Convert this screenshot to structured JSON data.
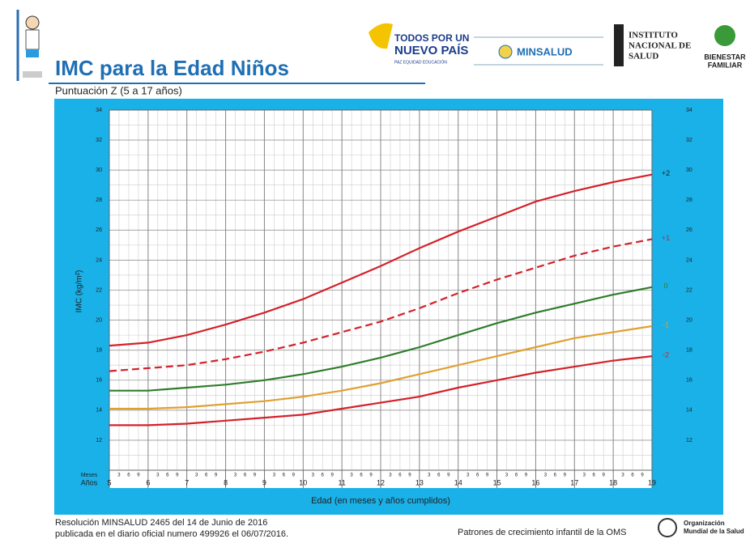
{
  "header": {
    "title": "IMC para la Edad Niños",
    "subtitle": "Puntuación Z (5 a 17 años)",
    "logo1_line1": "TODOS POR UN",
    "logo1_line2": "NUEVO PAÍS",
    "logo1_tagline": "PAZ  EQUIDAD  EDUCACIÓN",
    "logo2": "MINSALUD",
    "logo3": [
      "INSTITUTO",
      "NACIONAL DE",
      "SALUD"
    ],
    "logo4": [
      "BIENESTAR",
      "FAMILIAR"
    ]
  },
  "chart_data": {
    "type": "line",
    "y_label": "IMC (kg/m²)",
    "x_label": "Edad (en meses y años cumplidos)",
    "month_row_label": "Meses",
    "year_row_label": "Años",
    "month_ticks": [
      3,
      6,
      9
    ],
    "x": [
      5,
      6,
      7,
      8,
      9,
      10,
      11,
      12,
      13,
      14,
      15,
      16,
      17,
      18,
      19
    ],
    "xlim": [
      5,
      19
    ],
    "xticks": [
      5,
      6,
      7,
      8,
      9,
      10,
      11,
      12,
      13,
      14,
      15,
      16,
      17,
      18,
      19
    ],
    "ylim": [
      10,
      34
    ],
    "yticks": [
      12,
      14,
      16,
      18,
      20,
      22,
      24,
      26,
      28,
      30,
      32,
      34
    ],
    "grid": true,
    "series": [
      {
        "name": "+2",
        "color": "#d4212a",
        "dashed": false,
        "values": [
          18.3,
          18.5,
          19.0,
          19.7,
          20.5,
          21.4,
          22.5,
          23.6,
          24.8,
          25.9,
          26.9,
          27.9,
          28.6,
          29.2,
          29.7
        ]
      },
      {
        "name": "+1",
        "color": "#d4212a",
        "dashed": true,
        "values": [
          16.6,
          16.8,
          17.0,
          17.4,
          17.9,
          18.5,
          19.2,
          19.9,
          20.8,
          21.8,
          22.7,
          23.5,
          24.3,
          24.9,
          25.4
        ]
      },
      {
        "name": "0",
        "color": "#2e7d2a",
        "dashed": false,
        "values": [
          15.3,
          15.3,
          15.5,
          15.7,
          16.0,
          16.4,
          16.9,
          17.5,
          18.2,
          19.0,
          19.8,
          20.5,
          21.1,
          21.7,
          22.2
        ]
      },
      {
        "name": "-1",
        "color": "#e0a030",
        "dashed": false,
        "values": [
          14.1,
          14.1,
          14.2,
          14.4,
          14.6,
          14.9,
          15.3,
          15.8,
          16.4,
          17.0,
          17.6,
          18.2,
          18.8,
          19.2,
          19.6
        ]
      },
      {
        "name": "-2",
        "color": "#d4212a",
        "dashed": false,
        "values": [
          13.0,
          13.0,
          13.1,
          13.3,
          13.5,
          13.7,
          14.1,
          14.5,
          14.9,
          15.5,
          16.0,
          16.5,
          16.9,
          17.3,
          17.6
        ]
      }
    ]
  },
  "footer": {
    "line1": "Resolución MINSALUD 2465 del 14 de Junio de 2016",
    "line2": "publicada en el diario oficial numero 499926 el 06/07/2016.",
    "source": "Patrones de crecimiento infantil de la OMS",
    "who": [
      "Organización",
      "Mundial de la Salud"
    ]
  }
}
